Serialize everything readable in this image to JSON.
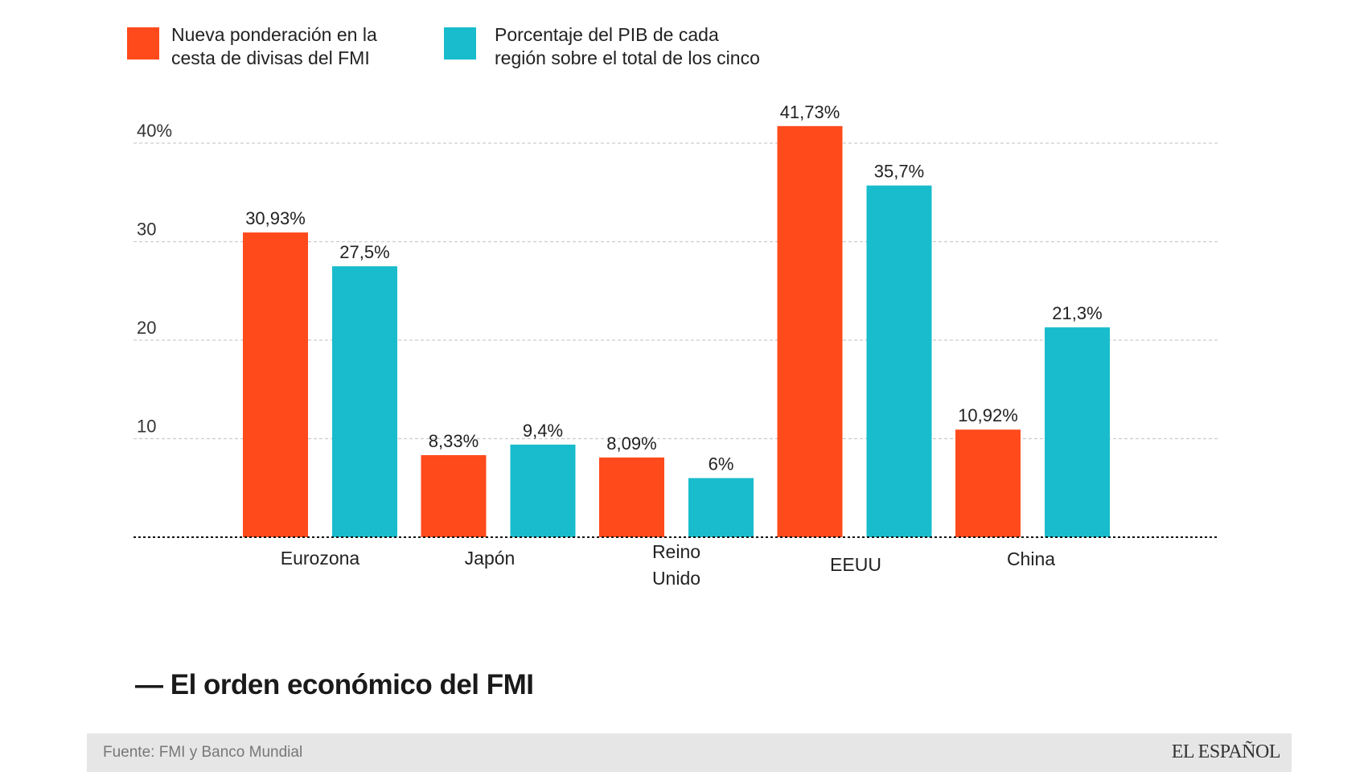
{
  "chart_data": {
    "type": "bar",
    "title": "— El orden económico del FMI",
    "categories": [
      "Eurozona",
      "Japón",
      "Reino Unido",
      "EEUU",
      "China"
    ],
    "category_lines": [
      [
        "Eurozona"
      ],
      [
        "Japón"
      ],
      [
        "Reino",
        "Unido"
      ],
      [
        "EEUU"
      ],
      [
        "China"
      ]
    ],
    "series": [
      {
        "name": "Nueva ponderación en la cesta de divisas del FMI",
        "legend_lines": [
          "Nueva ponderación en la",
          "cesta de divisas del FMI"
        ],
        "color": "#ff4a1c",
        "values": [
          30.93,
          8.33,
          8.09,
          41.73,
          10.92
        ],
        "labels": [
          "30,93%",
          "8,33%",
          "8,09%",
          "41,73%",
          "10,92%"
        ]
      },
      {
        "name": "Porcentaje del PIB de cada región sobre el total de los cinco",
        "legend_lines": [
          "Porcentaje del PIB de cada",
          "región sobre el total de los cinco"
        ],
        "color": "#19bccc",
        "values": [
          27.5,
          9.4,
          6,
          35.7,
          21.3
        ],
        "labels": [
          "27,5%",
          "9,4%",
          "6%",
          "35,7%",
          "21,3%"
        ]
      }
    ],
    "y_ticks": [
      10,
      20,
      30,
      40
    ],
    "y_tick_labels": [
      "10",
      "20",
      "30",
      "40%"
    ],
    "ylim": [
      0,
      40
    ],
    "xlabel": "",
    "ylabel": "",
    "grid": true,
    "legend_position": "top-left"
  },
  "footer": {
    "source": "Fuente: FMI y Banco Mundial",
    "brand": "EL ESPAÑOL"
  }
}
